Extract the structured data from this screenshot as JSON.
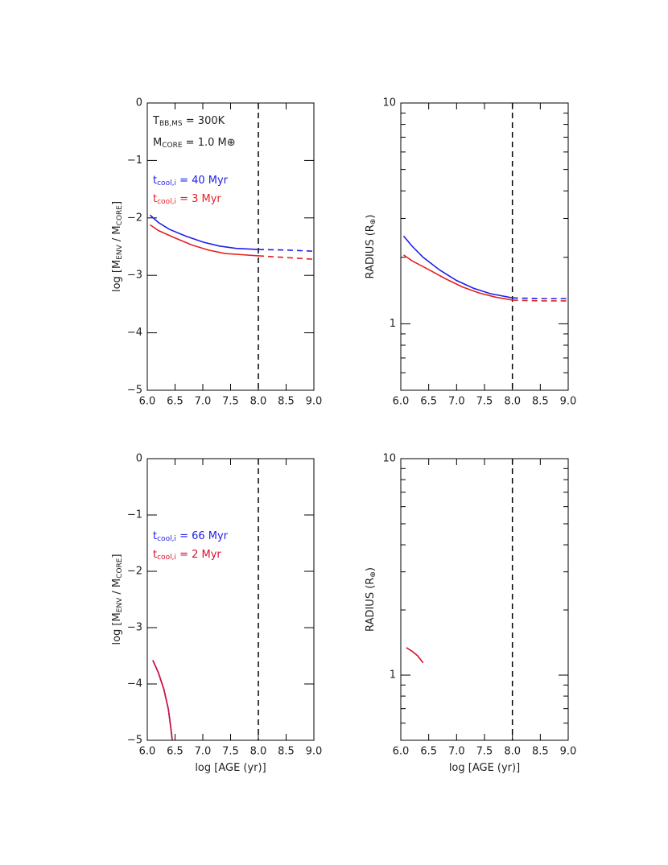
{
  "chart_data": [
    {
      "type": "line",
      "ylabel": [
        "log [M",
        {
          "sub": "ENV"
        },
        " / M",
        {
          "sub": "CORE"
        },
        "]"
      ],
      "xlim": [
        6,
        9
      ],
      "ylim": [
        -5,
        0
      ],
      "xticks": [
        {
          "value": 6,
          "label": "6.0"
        },
        {
          "value": 6.5,
          "label": "6.5"
        },
        {
          "value": 7,
          "label": "7.0"
        },
        {
          "value": 7.5,
          "label": "7.5"
        },
        {
          "value": 8,
          "label": "8.0"
        },
        {
          "value": 8.5,
          "label": "8.5"
        },
        {
          "value": 9,
          "label": "9.0"
        }
      ],
      "yticks": [
        0,
        {
          "value": -1,
          "label": "−1"
        },
        {
          "value": -2,
          "label": "−2"
        },
        {
          "value": -3,
          "label": "−3"
        },
        {
          "value": -4,
          "label": "−4"
        },
        {
          "value": -5,
          "label": "−5"
        }
      ],
      "vline": 8,
      "annotations": [
        [
          "T",
          {
            "sub": "BB,MS"
          },
          " = 300K"
        ],
        [
          "M",
          {
            "sub": "CORE"
          },
          " = 1.0 M⊕"
        ]
      ],
      "series": [
        {
          "name": [
            "t",
            {
              "sub": "cool,i"
            },
            " = 40 Myr"
          ],
          "color": "#1f1fe6",
          "x": [
            6.05,
            6.2,
            6.4,
            6.7,
            7.0,
            7.3,
            7.6,
            8.0,
            8.5,
            9.0
          ],
          "values": [
            -1.95,
            -2.08,
            -2.2,
            -2.32,
            -2.42,
            -2.49,
            -2.53,
            -2.55,
            -2.56,
            -2.58
          ]
        },
        {
          "name": [
            "t",
            {
              "sub": "cool,i"
            },
            " = 3 Myr"
          ],
          "color": "#e62020",
          "x": [
            6.05,
            6.2,
            6.5,
            6.8,
            7.1,
            7.4,
            7.7,
            8.0,
            8.5,
            9.0
          ],
          "values": [
            -2.12,
            -2.22,
            -2.35,
            -2.47,
            -2.56,
            -2.62,
            -2.64,
            -2.66,
            -2.69,
            -2.72
          ]
        }
      ]
    },
    {
      "type": "line",
      "ylabel": [
        "RADIUS (R",
        {
          "sub": "⊕"
        },
        ")"
      ],
      "xlim": [
        6,
        9
      ],
      "ylim": [
        0.5,
        10
      ],
      "ylog": true,
      "xticks": [
        {
          "value": 6,
          "label": "6.0"
        },
        {
          "value": 6.5,
          "label": "6.5"
        },
        {
          "value": 7,
          "label": "7.0"
        },
        {
          "value": 7.5,
          "label": "7.5"
        },
        {
          "value": 8,
          "label": "8.0"
        },
        {
          "value": 8.5,
          "label": "8.5"
        },
        {
          "value": 9,
          "label": "9.0"
        }
      ],
      "yticks": [
        1,
        10
      ],
      "yminor": [
        0.5,
        0.6,
        0.7,
        0.8,
        0.9,
        2,
        3,
        4,
        5,
        6,
        7,
        8,
        9
      ],
      "vline": 8,
      "series": [
        {
          "color": "#1f1fe6",
          "x": [
            6.05,
            6.2,
            6.4,
            6.7,
            7.0,
            7.3,
            7.6,
            8.0,
            8.5,
            9.0
          ],
          "values": [
            2.5,
            2.25,
            2.0,
            1.75,
            1.57,
            1.45,
            1.37,
            1.31,
            1.3,
            1.3
          ]
        },
        {
          "color": "#e62020",
          "x": [
            6.05,
            6.2,
            6.5,
            6.8,
            7.1,
            7.4,
            7.7,
            8.0,
            8.5,
            9.0
          ],
          "values": [
            2.05,
            1.93,
            1.76,
            1.6,
            1.47,
            1.38,
            1.32,
            1.28,
            1.27,
            1.27
          ]
        }
      ]
    },
    {
      "type": "line",
      "xlabel": [
        "log [AGE (yr)]"
      ],
      "ylabel": [
        "log [M",
        {
          "sub": "ENV"
        },
        " / M",
        {
          "sub": "CORE"
        },
        "]"
      ],
      "xlim": [
        6,
        9
      ],
      "ylim": [
        -5,
        0
      ],
      "xticks": [
        {
          "value": 6,
          "label": "6.0"
        },
        {
          "value": 6.5,
          "label": "6.5"
        },
        {
          "value": 7,
          "label": "7.0"
        },
        {
          "value": 7.5,
          "label": "7.5"
        },
        {
          "value": 8,
          "label": "8.0"
        },
        {
          "value": 8.5,
          "label": "8.5"
        },
        {
          "value": 9,
          "label": "9.0"
        }
      ],
      "yticks": [
        0,
        {
          "value": -1,
          "label": "−1"
        },
        {
          "value": -2,
          "label": "−2"
        },
        {
          "value": -3,
          "label": "−3"
        },
        {
          "value": -4,
          "label": "−4"
        },
        {
          "value": -5,
          "label": "−5"
        }
      ],
      "vline": 8,
      "series": [
        {
          "name": [
            "t",
            {
              "sub": "cool,i"
            },
            " = 66 Myr"
          ],
          "color": "#1f1fe6",
          "x": [
            6.1,
            6.2,
            6.3,
            6.38,
            6.42,
            6.45
          ],
          "values": [
            -3.58,
            -3.8,
            -4.1,
            -4.45,
            -4.75,
            -5.0
          ]
        },
        {
          "name": [
            "t",
            {
              "sub": "cool,i"
            },
            " = 2 Myr"
          ],
          "color": "#d81030",
          "x": [
            6.1,
            6.2,
            6.3,
            6.38,
            6.42,
            6.45
          ],
          "values": [
            -3.58,
            -3.8,
            -4.1,
            -4.45,
            -4.75,
            -5.0
          ]
        }
      ]
    },
    {
      "type": "line",
      "xlabel": [
        "log [AGE (yr)]"
      ],
      "ylabel": [
        "RADIUS (R",
        {
          "sub": "⊕"
        },
        ")"
      ],
      "xlim": [
        6,
        9
      ],
      "ylim": [
        0.5,
        10
      ],
      "ylog": true,
      "xticks": [
        {
          "value": 6,
          "label": "6.0"
        },
        {
          "value": 6.5,
          "label": "6.5"
        },
        {
          "value": 7,
          "label": "7.0"
        },
        {
          "value": 7.5,
          "label": "7.5"
        },
        {
          "value": 8,
          "label": "8.0"
        },
        {
          "value": 8.5,
          "label": "8.5"
        },
        {
          "value": 9,
          "label": "9.0"
        }
      ],
      "yticks": [
        1,
        10
      ],
      "yminor": [
        0.5,
        0.6,
        0.7,
        0.8,
        0.9,
        2,
        3,
        4,
        5,
        6,
        7,
        8,
        9
      ],
      "vline": 8,
      "series": [
        {
          "color": "#d81030",
          "x": [
            6.1,
            6.2,
            6.3,
            6.4
          ],
          "values": [
            1.34,
            1.29,
            1.23,
            1.14
          ]
        }
      ]
    }
  ]
}
